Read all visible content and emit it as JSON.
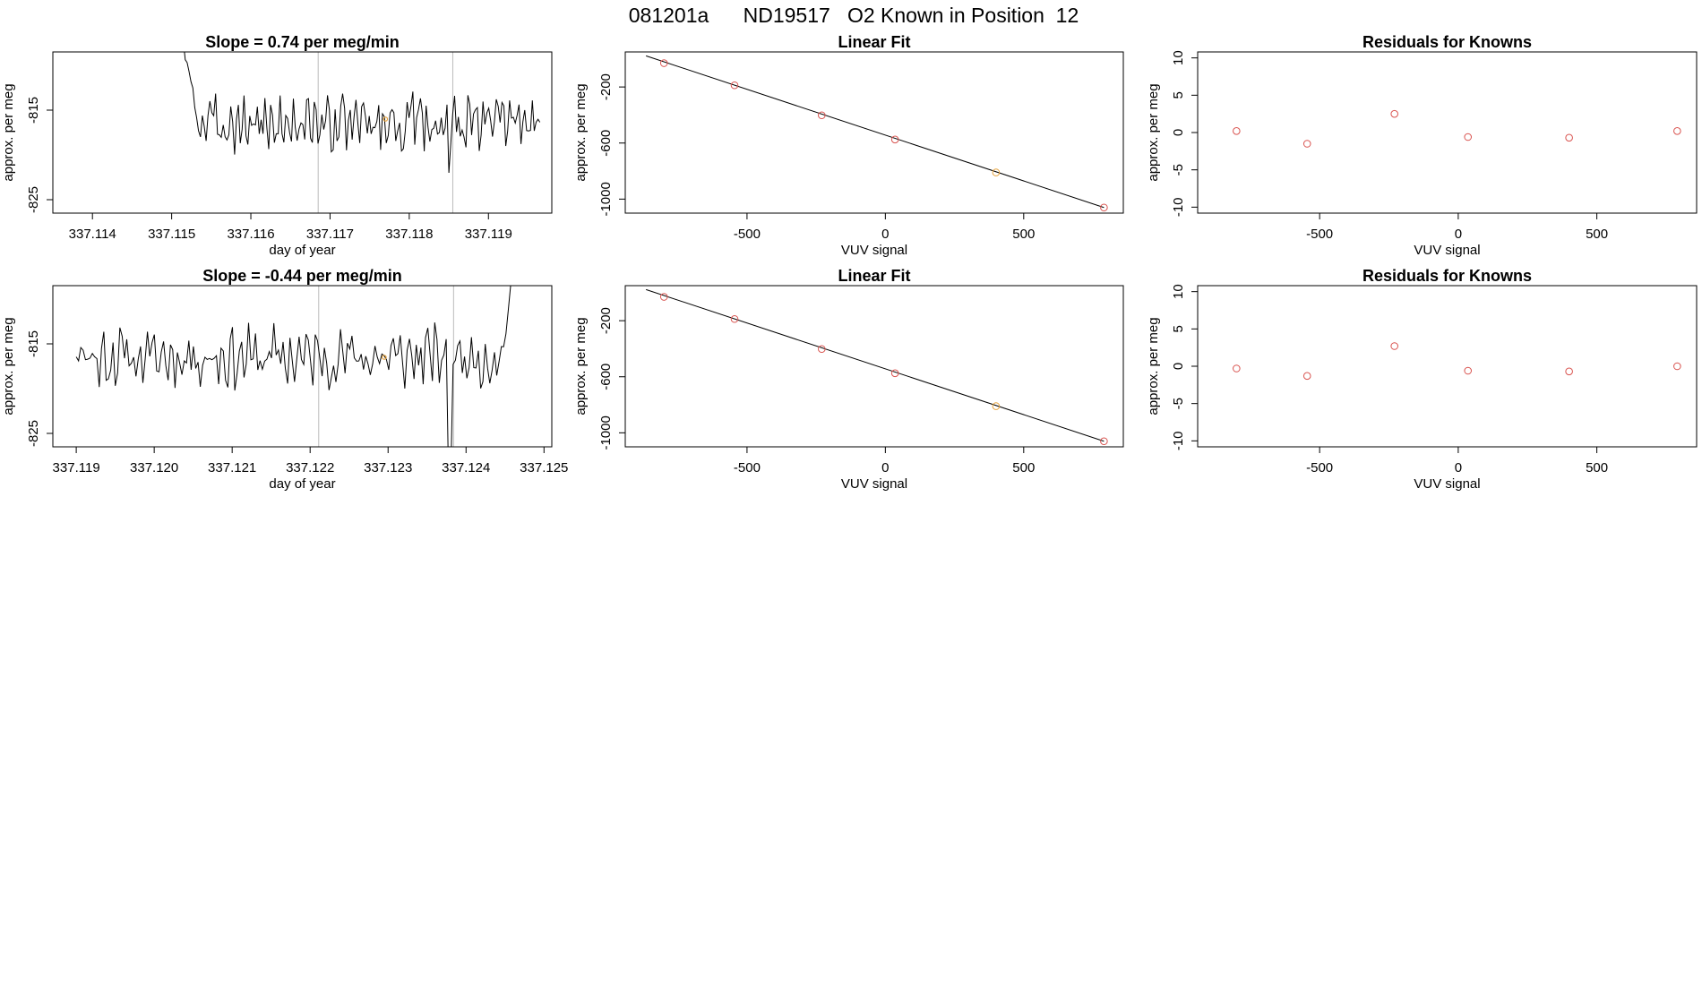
{
  "page_title": "081201a      ND19517   O2 Known in Position  12",
  "colors": {
    "trace": "#000000",
    "points": "#d9534f",
    "highlight": "#e6a23c",
    "marker_lines": "#bbbbbb",
    "frame": "#000000"
  },
  "chart_data": [
    {
      "id": "ts-top",
      "type": "line",
      "title": "Slope =  0.74  per meg/min",
      "xlabel": "day of year",
      "ylabel": "approx. per meg",
      "xlim": [
        337.1135,
        337.1198
      ],
      "ylim": [
        -826.5,
        -808.5
      ],
      "xticks": [
        "337.114",
        "337.115",
        "337.116",
        "337.117",
        "337.118",
        "337.119"
      ],
      "yticks": [
        "-825",
        "-815"
      ],
      "vlines": [
        337.11685,
        337.11855
      ],
      "highlight_point": {
        "x": 337.1177,
        "y": -816
      },
      "series": [
        {
          "x_start": 337.1151,
          "x_end": 337.11965,
          "y_start": -806,
          "y_level": -816.5,
          "y_amp": 2.4,
          "dips": [
            [
              337.1185,
              -822
            ]
          ],
          "seed": 3
        }
      ]
    },
    {
      "id": "fit-top",
      "type": "scatter",
      "title": "Linear Fit",
      "xlabel": "VUV signal",
      "ylabel": "approx. per meg",
      "xlim": [
        -940,
        860
      ],
      "ylim": [
        -1100,
        50
      ],
      "xticks": [
        "-500",
        "0",
        "500"
      ],
      "yticks": [
        "-1000",
        "-600",
        "-200"
      ],
      "x": [
        -800,
        -545,
        -230,
        35,
        400,
        790
      ],
      "y": [
        -30,
        -188,
        -402,
        -575,
        -810,
        -1060
      ],
      "highlight_index": 4,
      "fit_line": {
        "x": [
          -865,
          790
        ],
        "y": [
          22,
          -1060
        ]
      }
    },
    {
      "id": "res-top",
      "type": "scatter",
      "title": "Residuals for Knowns",
      "xlabel": "VUV signal",
      "ylabel": "approx. per meg",
      "xlim": [
        -940,
        860
      ],
      "ylim": [
        -10.8,
        10.8
      ],
      "xticks": [
        "-500",
        "0",
        "500"
      ],
      "yticks": [
        "-10",
        "-5",
        "0",
        "5",
        "10"
      ],
      "x": [
        -800,
        -545,
        -230,
        35,
        400,
        790
      ],
      "y": [
        0.2,
        -1.5,
        2.5,
        -0.6,
        -0.7,
        0.2
      ]
    },
    {
      "id": "ts-bottom",
      "type": "line",
      "title": "Slope =  -0.44  per meg/min",
      "xlabel": "day of year",
      "ylabel": "approx. per meg",
      "xlim": [
        337.1187,
        337.1251
      ],
      "ylim": [
        -826.5,
        -808.5
      ],
      "xticks": [
        "337.119",
        "337.120",
        "337.121",
        "337.122",
        "337.123",
        "337.124",
        "337.125"
      ],
      "yticks": [
        "-825",
        "-815"
      ],
      "vlines": [
        337.12211,
        337.12384
      ],
      "highlight_point": {
        "x": 337.12295,
        "y": -816.5
      },
      "series": [
        {
          "x_start": 337.119,
          "x_end": 337.1246,
          "y_start": -816,
          "y_level": -816.5,
          "y_amp": 2.6,
          "dips": [
            [
              337.1238,
              -830
            ]
          ],
          "seed": 11,
          "end_rise": -806
        }
      ]
    },
    {
      "id": "fit-bottom",
      "type": "scatter",
      "title": "Linear Fit",
      "xlabel": "VUV signal",
      "ylabel": "approx. per meg",
      "xlim": [
        -940,
        860
      ],
      "ylim": [
        -1100,
        50
      ],
      "xticks": [
        "-500",
        "0",
        "500"
      ],
      "yticks": [
        "-1000",
        "-600",
        "-200"
      ],
      "x": [
        -800,
        -545,
        -230,
        35,
        400,
        790
      ],
      "y": [
        -30,
        -188,
        -402,
        -575,
        -810,
        -1060
      ],
      "highlight_index": 4,
      "fit_line": {
        "x": [
          -865,
          790
        ],
        "y": [
          22,
          -1060
        ]
      }
    },
    {
      "id": "res-bottom",
      "type": "scatter",
      "title": "Residuals for Knowns",
      "xlabel": "VUV signal",
      "ylabel": "approx. per meg",
      "xlim": [
        -940,
        860
      ],
      "ylim": [
        -10.8,
        10.8
      ],
      "xticks": [
        "-500",
        "0",
        "500"
      ],
      "yticks": [
        "-10",
        "-5",
        "0",
        "5",
        "10"
      ],
      "x": [
        -800,
        -545,
        -230,
        35,
        400,
        790
      ],
      "y": [
        -0.3,
        -1.3,
        2.7,
        -0.6,
        -0.7,
        0.0
      ]
    }
  ]
}
